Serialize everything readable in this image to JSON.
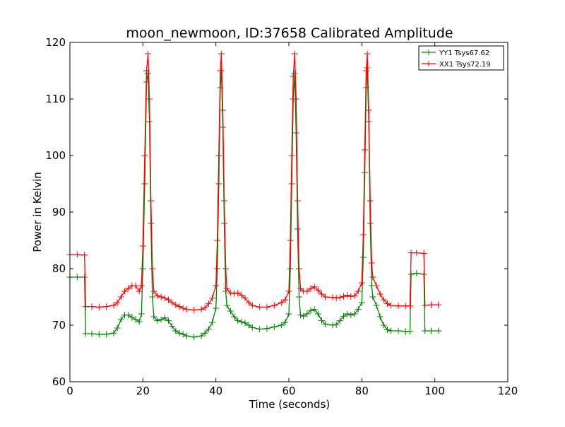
{
  "chart_data": {
    "type": "line",
    "title": "moon_newmoon, ID:37658 Calibrated Amplitude",
    "xlabel": "Time (seconds)",
    "ylabel": "Power in Kelvin",
    "xlim": [
      0,
      120
    ],
    "ylim": [
      60,
      120
    ],
    "xticks": [
      0,
      20,
      40,
      60,
      80,
      100,
      120
    ],
    "yticks": [
      60,
      70,
      80,
      90,
      100,
      110,
      120
    ],
    "grid": false,
    "legend_position": "top-right",
    "marker": "+",
    "series": [
      {
        "name": "YY1 Tsys67.62",
        "color": "#008000",
        "points": [
          [
            0,
            78.5
          ],
          [
            2,
            78.5
          ],
          [
            4,
            78.5
          ],
          [
            4.3,
            68.5
          ],
          [
            6,
            68.5
          ],
          [
            8,
            68.4
          ],
          [
            10,
            68.4
          ],
          [
            12,
            68.6
          ],
          [
            13,
            69.5
          ],
          [
            14,
            71
          ],
          [
            15,
            71.8
          ],
          [
            16,
            71.8
          ],
          [
            17,
            71.4
          ],
          [
            18,
            71
          ],
          [
            19,
            70.6
          ],
          [
            19.6,
            72
          ],
          [
            20,
            80
          ],
          [
            20.5,
            95
          ],
          [
            21,
            113
          ],
          [
            21.4,
            114.5
          ],
          [
            21.8,
            106
          ],
          [
            22.2,
            88
          ],
          [
            22.6,
            75
          ],
          [
            23,
            71.5
          ],
          [
            24,
            70.8
          ],
          [
            25,
            71
          ],
          [
            26,
            71.3
          ],
          [
            27,
            70.8
          ],
          [
            28,
            69.8
          ],
          [
            29,
            69
          ],
          [
            30,
            68.6
          ],
          [
            31,
            68.4
          ],
          [
            32,
            68.1
          ],
          [
            34,
            67.9
          ],
          [
            36,
            68.1
          ],
          [
            37,
            68.6
          ],
          [
            38,
            69.3
          ],
          [
            39,
            70.5
          ],
          [
            40,
            73
          ],
          [
            40.4,
            80
          ],
          [
            40.8,
            95
          ],
          [
            41.2,
            112
          ],
          [
            41.5,
            115
          ],
          [
            41.9,
            105
          ],
          [
            42.3,
            88
          ],
          [
            42.7,
            76
          ],
          [
            43,
            73.5
          ],
          [
            44,
            72.5
          ],
          [
            45,
            71.5
          ],
          [
            46,
            70.8
          ],
          [
            47,
            70.6
          ],
          [
            48,
            70.4
          ],
          [
            49,
            70
          ],
          [
            50,
            69.6
          ],
          [
            52,
            69.3
          ],
          [
            54,
            69.4
          ],
          [
            56,
            69.7
          ],
          [
            58,
            70
          ],
          [
            59,
            70.5
          ],
          [
            60,
            72
          ],
          [
            60.4,
            80
          ],
          [
            60.8,
            95
          ],
          [
            61.2,
            110
          ],
          [
            61.6,
            114.5
          ],
          [
            62,
            104
          ],
          [
            62.4,
            87
          ],
          [
            62.8,
            75
          ],
          [
            63.2,
            71.8
          ],
          [
            64,
            71.6
          ],
          [
            65,
            72
          ],
          [
            66,
            72.6
          ],
          [
            67,
            72.8
          ],
          [
            68,
            72
          ],
          [
            69,
            70.8
          ],
          [
            70,
            70.2
          ],
          [
            72,
            70
          ],
          [
            73,
            70.1
          ],
          [
            74,
            70.8
          ],
          [
            75,
            71.6
          ],
          [
            76,
            72
          ],
          [
            77,
            71.8
          ],
          [
            78,
            72
          ],
          [
            79,
            72.8
          ],
          [
            80,
            74
          ],
          [
            80.4,
            82
          ],
          [
            80.8,
            97
          ],
          [
            81.2,
            112
          ],
          [
            81.5,
            115.5
          ],
          [
            81.9,
            106
          ],
          [
            82.3,
            88
          ],
          [
            82.7,
            77
          ],
          [
            83,
            75
          ],
          [
            84,
            73.5
          ],
          [
            85,
            71.5
          ],
          [
            86,
            70
          ],
          [
            87,
            69.2
          ],
          [
            88,
            69
          ],
          [
            90,
            69
          ],
          [
            92,
            68.9
          ],
          [
            93.2,
            68.9
          ],
          [
            93.5,
            79
          ],
          [
            95,
            79.2
          ],
          [
            97,
            79
          ],
          [
            97.3,
            69
          ],
          [
            99,
            69
          ],
          [
            101,
            69
          ]
        ]
      },
      {
        "name": "XX1 Tsys72.19",
        "color": "#ff0000",
        "points": [
          [
            0,
            82.5
          ],
          [
            2,
            82.5
          ],
          [
            4,
            82.4
          ],
          [
            4.3,
            73.3
          ],
          [
            6,
            73.3
          ],
          [
            8,
            73.2
          ],
          [
            10,
            73.3
          ],
          [
            12,
            73.5
          ],
          [
            13,
            74
          ],
          [
            14,
            75
          ],
          [
            15,
            76
          ],
          [
            16,
            76.5
          ],
          [
            17,
            77
          ],
          [
            18,
            77
          ],
          [
            19,
            76
          ],
          [
            19.6,
            77
          ],
          [
            20,
            84
          ],
          [
            20.5,
            100
          ],
          [
            21,
            115
          ],
          [
            21.4,
            118
          ],
          [
            21.8,
            110
          ],
          [
            22.2,
            92
          ],
          [
            22.6,
            80
          ],
          [
            23,
            76
          ],
          [
            24,
            75.2
          ],
          [
            25,
            75
          ],
          [
            26,
            74.8
          ],
          [
            27,
            74.5
          ],
          [
            28,
            74
          ],
          [
            29,
            73.6
          ],
          [
            30,
            73.3
          ],
          [
            31,
            73
          ],
          [
            32,
            72.8
          ],
          [
            34,
            72.7
          ],
          [
            36,
            72.8
          ],
          [
            37,
            73.1
          ],
          [
            38,
            73.8
          ],
          [
            39,
            74.8
          ],
          [
            40,
            77
          ],
          [
            40.4,
            85
          ],
          [
            40.8,
            100
          ],
          [
            41.2,
            115
          ],
          [
            41.5,
            118
          ],
          [
            41.9,
            108
          ],
          [
            42.3,
            92
          ],
          [
            42.7,
            80
          ],
          [
            43,
            76.5
          ],
          [
            44,
            75.7
          ],
          [
            45,
            75.6
          ],
          [
            46,
            75.7
          ],
          [
            47,
            75.3
          ],
          [
            48,
            74.8
          ],
          [
            49,
            74
          ],
          [
            50,
            73.5
          ],
          [
            52,
            73.2
          ],
          [
            54,
            73.2
          ],
          [
            56,
            73.5
          ],
          [
            58,
            74
          ],
          [
            59,
            74.5
          ],
          [
            60,
            76
          ],
          [
            60.4,
            85
          ],
          [
            60.8,
            100
          ],
          [
            61.2,
            114
          ],
          [
            61.6,
            118
          ],
          [
            62,
            110
          ],
          [
            62.4,
            92
          ],
          [
            62.8,
            80
          ],
          [
            63.2,
            76.5
          ],
          [
            64,
            76
          ],
          [
            65,
            76
          ],
          [
            66,
            76.5
          ],
          [
            67,
            76.8
          ],
          [
            68,
            76.2
          ],
          [
            69,
            75.5
          ],
          [
            70,
            75
          ],
          [
            72,
            74.9
          ],
          [
            73,
            74.8
          ],
          [
            74,
            74.9
          ],
          [
            75,
            75.1
          ],
          [
            76,
            75.3
          ],
          [
            77,
            75.1
          ],
          [
            78,
            75.2
          ],
          [
            79,
            76
          ],
          [
            80,
            77.5
          ],
          [
            80.4,
            86
          ],
          [
            80.8,
            101
          ],
          [
            81.2,
            115
          ],
          [
            81.5,
            118
          ],
          [
            81.9,
            108
          ],
          [
            82.3,
            92
          ],
          [
            82.7,
            81
          ],
          [
            83,
            78.5
          ],
          [
            84,
            77
          ],
          [
            85,
            75.5
          ],
          [
            86,
            74.5
          ],
          [
            87,
            73.8
          ],
          [
            88,
            73.5
          ],
          [
            90,
            73.4
          ],
          [
            92,
            73.4
          ],
          [
            93.2,
            73.4
          ],
          [
            93.5,
            82.8
          ],
          [
            95,
            82.8
          ],
          [
            97,
            82.7
          ],
          [
            97.3,
            73.5
          ],
          [
            99,
            73.6
          ],
          [
            101,
            73.6
          ]
        ]
      }
    ]
  }
}
